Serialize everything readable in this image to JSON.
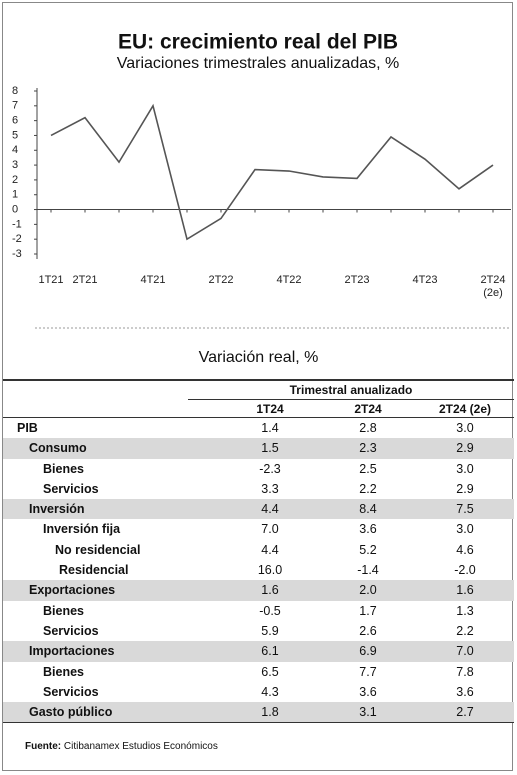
{
  "chart_data": {
    "type": "line",
    "title": "EU: crecimiento real del PIB",
    "subtitle": "Variaciones trimestrales anualizadas, %",
    "categories": [
      "1T21",
      "2T21",
      null,
      "4T21",
      null,
      "2T22",
      null,
      "4T22",
      null,
      "2T23",
      null,
      "4T23",
      null,
      "2T24 (2e)"
    ],
    "values": [
      5.0,
      6.2,
      3.2,
      7.0,
      -2.0,
      -0.6,
      2.7,
      2.6,
      2.2,
      2.1,
      4.9,
      3.4,
      1.4,
      3.0
    ],
    "color": "#555555",
    "ylim": [
      -3,
      8
    ],
    "yticks": [
      -3,
      -2,
      -1,
      0,
      1,
      2,
      3,
      4,
      5,
      6,
      7,
      8
    ]
  },
  "table": {
    "title": "Variación real, %",
    "group_header": "Trimestral anualizado",
    "columns": [
      "1T24",
      "2T24",
      "2T24 (2e)"
    ],
    "rows": [
      [
        "PIB",
        "1.4",
        "2.8",
        "3.0"
      ],
      [
        "Consumo",
        "1.5",
        "2.3",
        "2.9"
      ],
      [
        "Bienes",
        "-2.3",
        "2.5",
        "3.0"
      ],
      [
        "Servicios",
        "3.3",
        "2.2",
        "2.9"
      ],
      [
        "Inversión",
        "4.4",
        "8.4",
        "7.5"
      ],
      [
        "Inversión fija",
        "7.0",
        "3.6",
        "3.0"
      ],
      [
        "No residencial",
        "4.4",
        "5.2",
        "4.6"
      ],
      [
        "Residencial",
        "16.0",
        "-1.4",
        "-2.0"
      ],
      [
        "Exportaciones",
        "1.6",
        "2.0",
        "1.6"
      ],
      [
        "Bienes",
        "-0.5",
        "1.7",
        "1.3"
      ],
      [
        "Servicios",
        "5.9",
        "2.6",
        "2.2"
      ],
      [
        "Importaciones",
        "6.1",
        "6.9",
        "7.0"
      ],
      [
        "Bienes",
        "6.5",
        "7.7",
        "7.8"
      ],
      [
        "Servicios",
        "4.3",
        "3.6",
        "3.6"
      ],
      [
        "Gasto público",
        "1.8",
        "3.1",
        "2.7"
      ]
    ]
  },
  "source_label": "Fuente:",
  "source": "Citibanamex Estudios Económicos"
}
